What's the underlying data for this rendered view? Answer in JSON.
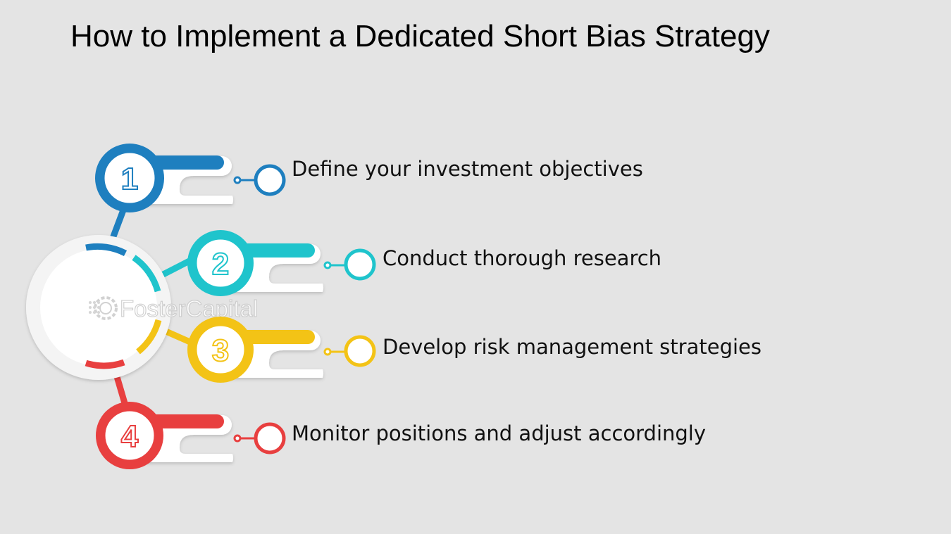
{
  "title": "How to Implement a Dedicated Short Bias Strategy",
  "watermark": "FosterCapital",
  "colors": {
    "background": "#e4e4e4",
    "step1": "#1e7fbf",
    "step2": "#1fc4cc",
    "step3": "#f3c316",
    "step4": "#e83f3f"
  },
  "steps": [
    {
      "number": "1",
      "text": "Define your investment objectives"
    },
    {
      "number": "2",
      "text": "Conduct thorough research"
    },
    {
      "number": "3",
      "text": "Develop risk management strategies"
    },
    {
      "number": "4",
      "text": "Monitor positions and adjust accordingly"
    }
  ]
}
